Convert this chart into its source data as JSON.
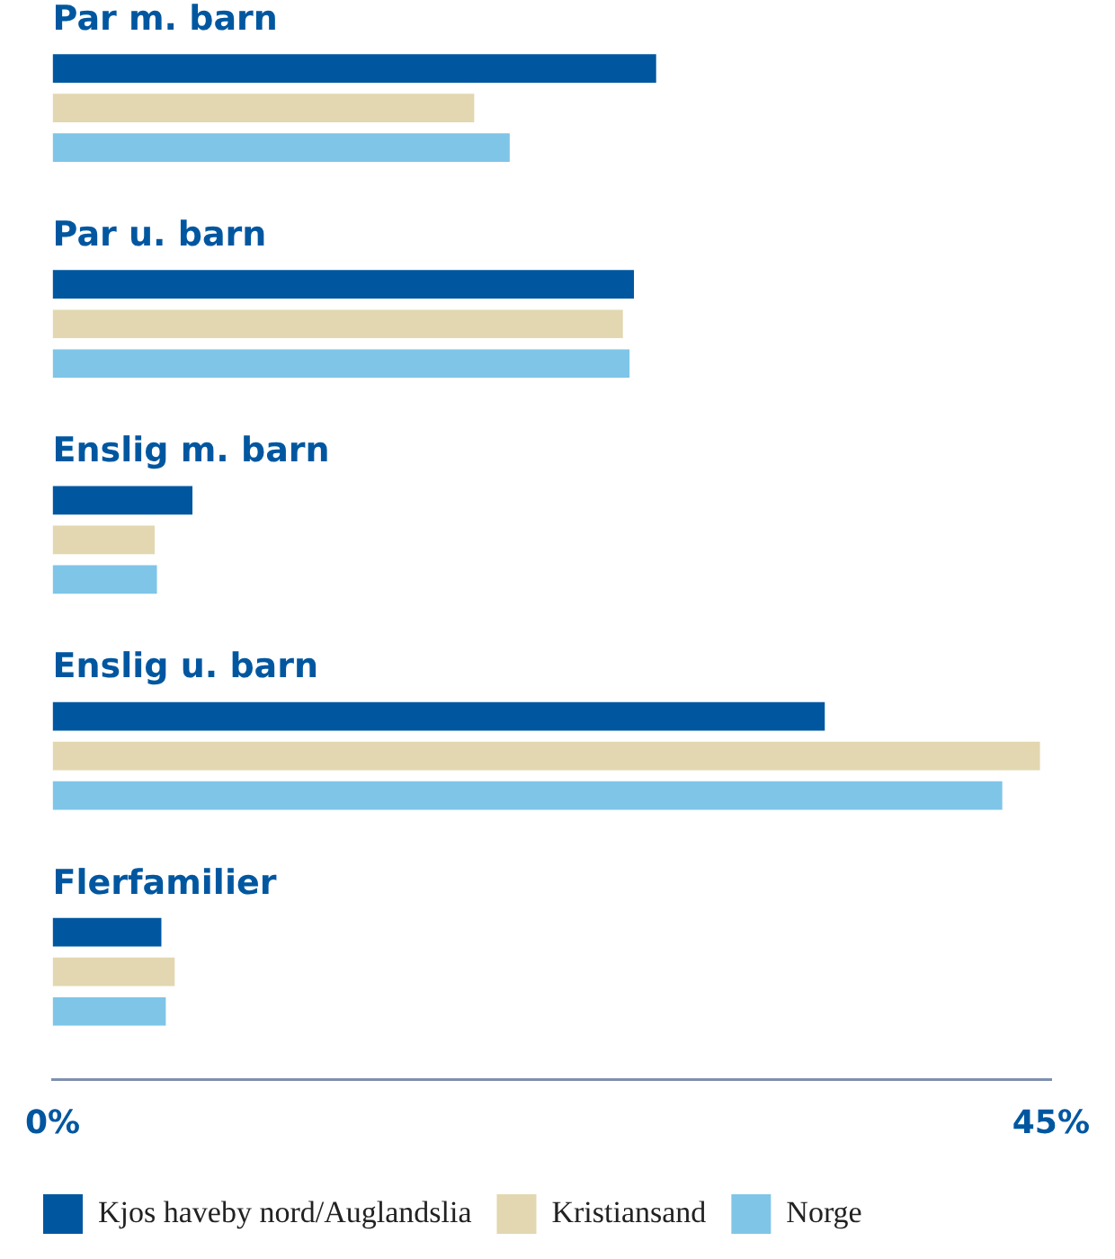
{
  "chart_data": {
    "type": "bar",
    "orientation": "horizontal",
    "categories": [
      "Par m. barn",
      "Par u. barn",
      "Enslig m. barn",
      "Enslig u. barn",
      "Flerfamilier"
    ],
    "series": [
      {
        "name": "Kjos haveby nord/Auglandslia",
        "color": "#0057a0",
        "values": [
          27.2,
          26.2,
          6.3,
          34.8,
          4.9
        ]
      },
      {
        "name": "Kristiansand",
        "color": "#e2d7b0",
        "values": [
          19.0,
          25.7,
          4.6,
          44.5,
          5.5
        ]
      },
      {
        "name": "Norge",
        "color": "#7fc5e8",
        "values": [
          20.6,
          26.0,
          4.7,
          42.8,
          5.1
        ]
      }
    ],
    "xlim": [
      0,
      45
    ],
    "xticks": [
      {
        "value": 0,
        "label": "0%"
      },
      {
        "value": 45,
        "label": "45%"
      }
    ],
    "grid": false,
    "legend": "bottom"
  }
}
